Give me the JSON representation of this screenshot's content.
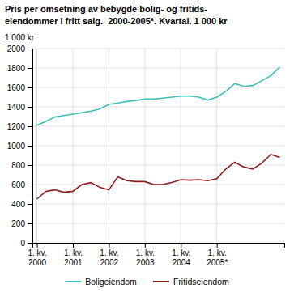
{
  "chart_data": {
    "type": "line",
    "title": [
      "Pris per omsetning av bebygde bolig- og fritids-",
      "eiendommer i fritt salg.  2000-2005*. Kvartal. 1 000 kr"
    ],
    "ylabel": "1 000 kr",
    "categories": [
      "1. kv.\n2000",
      null,
      null,
      null,
      "1. kv.\n2001",
      null,
      null,
      null,
      "1. kv.\n2002",
      null,
      null,
      null,
      "1. kv.\n2003",
      null,
      null,
      null,
      "1. kv.\n2004",
      null,
      null,
      null,
      "1. kv.\n2005*",
      null,
      null,
      null,
      null,
      null,
      null,
      null
    ],
    "series": [
      {
        "name": "Boligeiendom",
        "color": "#3dbfbb",
        "values": [
          1210,
          1250,
          1295,
          1310,
          1325,
          1340,
          1355,
          1380,
          1425,
          1440,
          1455,
          1465,
          1480,
          1480,
          1490,
          1500,
          1510,
          1510,
          1500,
          1470,
          1500,
          1560,
          1640,
          1610,
          1620,
          1670,
          1720,
          1810
        ]
      },
      {
        "name": "Fritidseiendom",
        "color": "#8b1a1a",
        "values": [
          450,
          530,
          545,
          520,
          530,
          600,
          620,
          570,
          545,
          680,
          640,
          630,
          630,
          600,
          600,
          620,
          650,
          645,
          650,
          640,
          660,
          760,
          830,
          780,
          760,
          820,
          910,
          880
        ]
      }
    ],
    "ylim": [
      0,
      2000
    ],
    "yticks": [
      0,
      200,
      400,
      600,
      800,
      1000,
      1200,
      1400,
      1600,
      1800,
      2000
    ],
    "grid": true,
    "legend": "bottom"
  }
}
